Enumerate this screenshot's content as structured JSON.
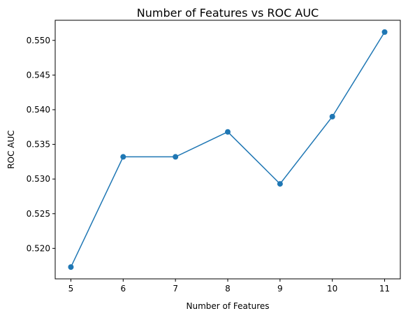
{
  "chart_data": {
    "type": "line",
    "title": "Number of Features vs ROC AUC",
    "xlabel": "Number of Features",
    "ylabel": "ROC AUC",
    "x": [
      5,
      6,
      7,
      8,
      9,
      10,
      11
    ],
    "series": [
      {
        "values": [
          0.5173,
          0.5332,
          0.5332,
          0.5368,
          0.5293,
          0.539,
          0.5512
        ],
        "color": "#1f77b4",
        "marker": "circle"
      }
    ],
    "xlim": [
      4.7,
      11.3
    ],
    "ylim": [
      0.5156,
      0.5529
    ],
    "xticks": [
      5,
      6,
      7,
      8,
      9,
      10,
      11
    ],
    "xtick_labels": [
      "5",
      "6",
      "7",
      "8",
      "9",
      "10",
      "11"
    ],
    "yticks": [
      0.52,
      0.525,
      0.53,
      0.535,
      0.54,
      0.545,
      0.55
    ],
    "ytick_labels": [
      "0.520",
      "0.525",
      "0.530",
      "0.535",
      "0.540",
      "0.545",
      "0.550"
    ],
    "grid": false,
    "legend": false
  }
}
